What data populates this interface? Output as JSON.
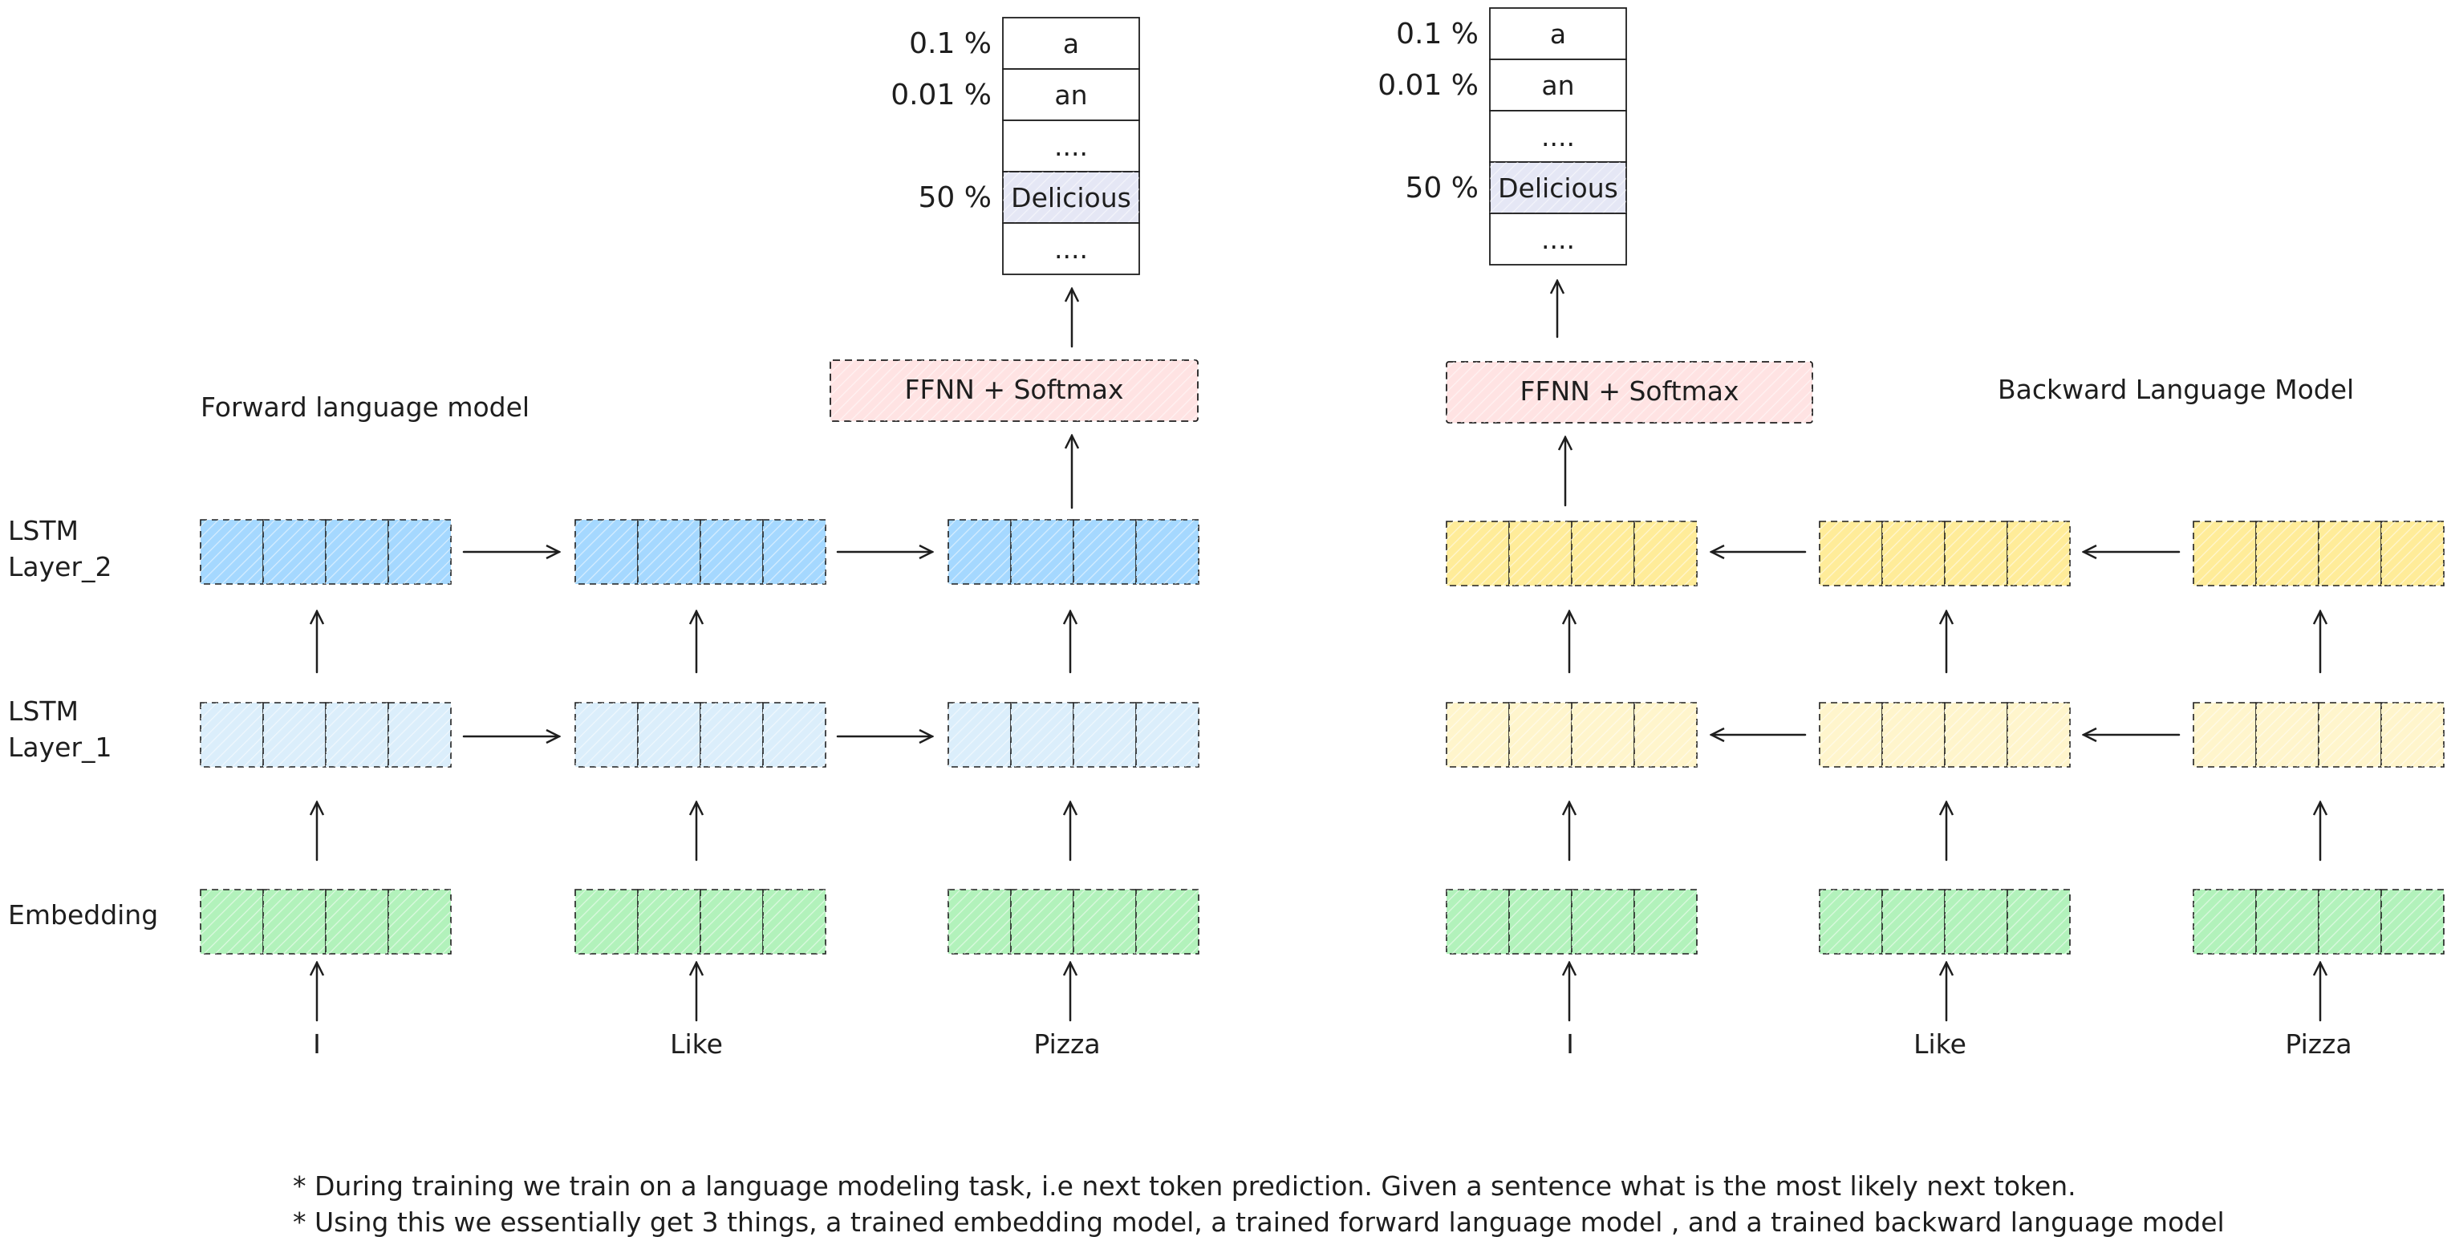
{
  "forward": {
    "title": "Forward language model",
    "tokens": [
      "I",
      "Like",
      "Pizza"
    ],
    "head_label": "FFNN + Softmax",
    "output": [
      {
        "pct": "0.1 %",
        "word": "a"
      },
      {
        "pct": "0.01 %",
        "word": "an"
      },
      {
        "pct": "",
        "word": "...."
      },
      {
        "pct": "50 %",
        "word": "Delicious"
      },
      {
        "pct": "",
        "word": "...."
      }
    ]
  },
  "backward": {
    "title": "Backward Language Model",
    "tokens": [
      "I",
      "Like",
      "Pizza"
    ],
    "head_label": "FFNN + Softmax",
    "output": [
      {
        "pct": "0.1 %",
        "word": "a"
      },
      {
        "pct": "0.01 %",
        "word": "an"
      },
      {
        "pct": "",
        "word": "...."
      },
      {
        "pct": "50 %",
        "word": "Delicious"
      },
      {
        "pct": "",
        "word": "...."
      }
    ]
  },
  "row_labels": {
    "lstm2_line1": "LSTM",
    "lstm2_line2": "Layer_2",
    "lstm1_line1": "LSTM",
    "lstm1_line2": "Layer_1",
    "embedding": "Embedding"
  },
  "notes": [
    "* During training we train on a language modeling task, i.e next token prediction. Given a sentence what is the most likely next token.",
    "* Using this we essentially get 3 things, a trained embedding model, a trained forward language model , and a trained backward language model"
  ],
  "colors": {
    "embedding": "#b2f2bb",
    "forward_lstm1": "#dbeefb",
    "forward_lstm2": "#a5d8ff",
    "backward_lstm1": "#fff5cc",
    "backward_lstm2": "#ffec99",
    "ffnn": "#ffe3e3",
    "output_hilite": "#e5e7f5",
    "stroke": "#1e1e1e"
  }
}
